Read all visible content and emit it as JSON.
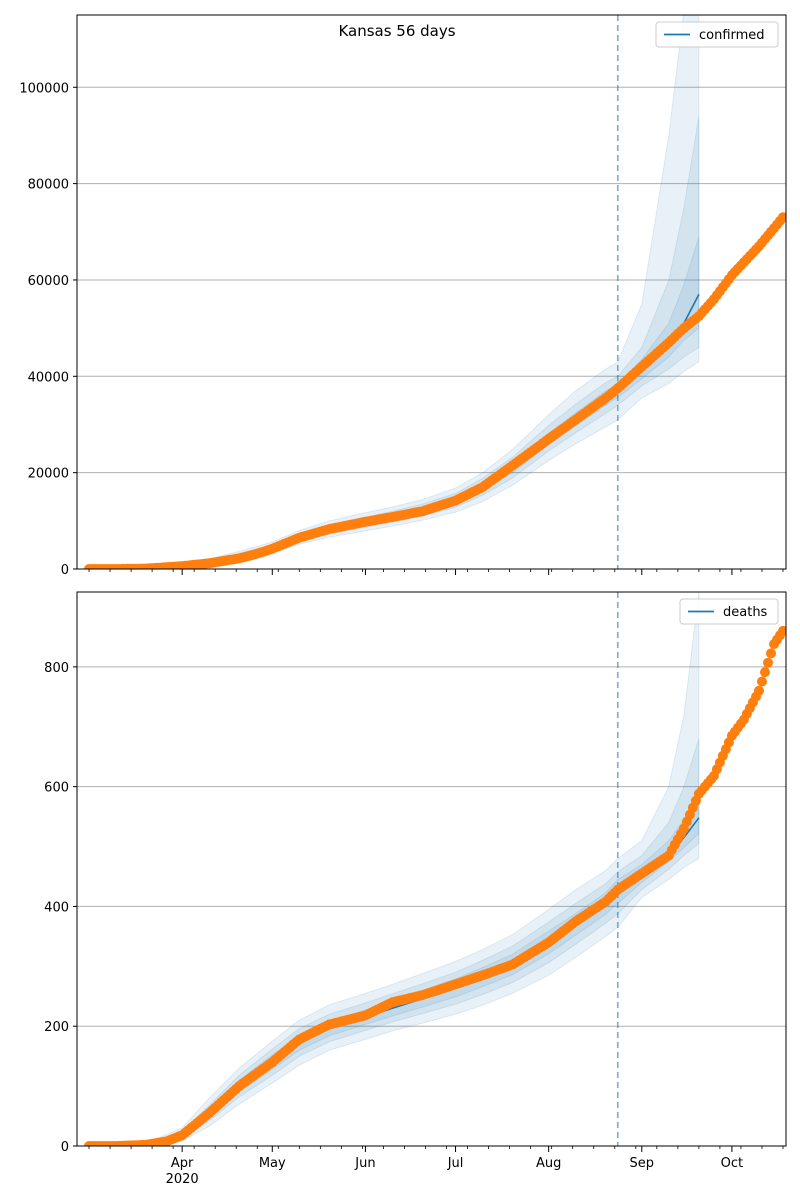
{
  "chart_data": [
    {
      "type": "line",
      "title": "Kansas 56 days",
      "xlabel": "",
      "ylabel": "",
      "ylim": [
        0,
        115000
      ],
      "grid": "horizontal",
      "legend_position": "top-right",
      "y_ticks": [
        0,
        20000,
        40000,
        60000,
        80000,
        100000
      ],
      "forecast_start": "2020-08-24",
      "series": [
        {
          "name": "confirmed",
          "kind": "model",
          "color": "#1f77b4",
          "x": [
            "2020-03-10",
            "2020-03-20",
            "2020-04-01",
            "2020-04-10",
            "2020-04-20",
            "2020-05-01",
            "2020-05-10",
            "2020-05-20",
            "2020-06-01",
            "2020-06-10",
            "2020-06-20",
            "2020-07-01",
            "2020-07-10",
            "2020-07-20",
            "2020-08-01",
            "2020-08-10",
            "2020-08-20",
            "2020-08-24",
            "2020-09-01",
            "2020-09-10",
            "2020-09-15",
            "2020-09-20"
          ],
          "values": [
            0,
            150,
            700,
            1500,
            2700,
            4300,
            6500,
            8200,
            9700,
            10800,
            12200,
            14200,
            17000,
            21000,
            27000,
            31000,
            35500,
            37000,
            41500,
            47000,
            51000,
            57000
          ],
          "bands": [
            {
              "lower": [
                0,
                100,
                450,
                1000,
                1900,
                3300,
                5100,
                6600,
                7900,
                8900,
                10100,
                11800,
                14000,
                17400,
                22500,
                26000,
                29500,
                31000,
                35500,
                38500,
                41000,
                43000
              ],
              "upper": [
                0,
                250,
                1000,
                2100,
                3700,
                5600,
                8000,
                10000,
                11700,
                12900,
                14400,
                16800,
                20000,
                24800,
                32000,
                37000,
                41500,
                43000,
                55000,
                90000,
                116000,
                116000
              ]
            },
            {
              "lower": [
                0,
                120,
                550,
                1200,
                2200,
                3700,
                5700,
                7300,
                8700,
                9700,
                11000,
                12800,
                15300,
                18900,
                24500,
                28300,
                32300,
                34000,
                38000,
                41500,
                44000,
                46000
              ],
              "upper": [
                0,
                200,
                880,
                1850,
                3250,
                5000,
                7300,
                9200,
                10800,
                12000,
                13500,
                15700,
                18800,
                23200,
                29800,
                34200,
                38700,
                40000,
                46000,
                60000,
                75000,
                94000
              ]
            },
            {
              "lower": [
                0,
                135,
                620,
                1350,
                2450,
                4000,
                6100,
                7800,
                9200,
                10300,
                11600,
                13500,
                16200,
                20000,
                25800,
                29700,
                34000,
                35600,
                39500,
                44000,
                47500,
                50000
              ],
              "upper": [
                0,
                170,
                790,
                1680,
                2980,
                4650,
                6900,
                8700,
                10200,
                11400,
                12850,
                14950,
                17900,
                22100,
                28200,
                32400,
                37000,
                38400,
                43500,
                51000,
                59000,
                69000
              ]
            }
          ]
        },
        {
          "name": "",
          "kind": "observed",
          "color": "#ff7f0e",
          "x": [
            "2020-03-01",
            "2020-03-10",
            "2020-03-20",
            "2020-03-25",
            "2020-04-01",
            "2020-04-10",
            "2020-04-20",
            "2020-04-25",
            "2020-05-01",
            "2020-05-10",
            "2020-05-20",
            "2020-06-01",
            "2020-06-10",
            "2020-06-20",
            "2020-07-01",
            "2020-07-10",
            "2020-07-20",
            "2020-08-01",
            "2020-08-10",
            "2020-08-20",
            "2020-08-24",
            "2020-09-01",
            "2020-09-10",
            "2020-09-15",
            "2020-09-20",
            "2020-09-25",
            "2020-10-01",
            "2020-10-10",
            "2020-10-18"
          ],
          "values": [
            0,
            0,
            100,
            300,
            600,
            1200,
            2200,
            3000,
            4200,
            6500,
            8300,
            9800,
            10800,
            12000,
            14200,
            17000,
            21500,
            27000,
            31000,
            35500,
            37500,
            42000,
            47000,
            50000,
            52500,
            56000,
            61000,
            67000,
            73000
          ]
        }
      ]
    },
    {
      "type": "line",
      "title": "",
      "xlabel": "",
      "ylabel": "",
      "ylim": [
        0,
        925
      ],
      "grid": "horizontal",
      "legend_position": "top-right",
      "y_ticks": [
        0,
        200,
        400,
        600,
        800
      ],
      "forecast_start": "2020-08-24",
      "x_ticks": [
        "Apr\n2020",
        "May",
        "Jun",
        "Jul",
        "Aug",
        "Sep",
        "Oct"
      ],
      "series": [
        {
          "name": "deaths",
          "kind": "model",
          "color": "#1f77b4",
          "x": [
            "2020-03-10",
            "2020-03-20",
            "2020-04-01",
            "2020-04-10",
            "2020-04-20",
            "2020-05-01",
            "2020-05-10",
            "2020-05-20",
            "2020-06-01",
            "2020-06-10",
            "2020-06-20",
            "2020-07-01",
            "2020-07-10",
            "2020-07-20",
            "2020-08-01",
            "2020-08-10",
            "2020-08-20",
            "2020-08-24",
            "2020-09-01",
            "2020-09-10",
            "2020-09-15",
            "2020-09-20"
          ],
          "values": [
            0,
            2,
            18,
            55,
            100,
            140,
            172,
            196,
            215,
            230,
            246,
            264,
            282,
            303,
            340,
            370,
            405,
            425,
            455,
            490,
            515,
            548
          ],
          "bands": [
            {
              "lower": [
                0,
                0,
                8,
                33,
                70,
                105,
                135,
                160,
                178,
                192,
                205,
                220,
                235,
                255,
                285,
                315,
                350,
                365,
                415,
                445,
                465,
                480
              ],
              "upper": [
                0,
                5,
                30,
                80,
                130,
                175,
                210,
                236,
                255,
                270,
                288,
                308,
                328,
                353,
                395,
                428,
                460,
                480,
                510,
                600,
                720,
                925
              ]
            },
            {
              "lower": [
                0,
                1,
                12,
                42,
                82,
                118,
                150,
                174,
                193,
                207,
                221,
                237,
                253,
                273,
                306,
                337,
                372,
                388,
                428,
                462,
                485,
                505
              ],
              "upper": [
                0,
                4,
                24,
                68,
                118,
                162,
                196,
                220,
                239,
                254,
                271,
                290,
                310,
                334,
                374,
                405,
                438,
                458,
                485,
                540,
                600,
                680
              ]
            },
            {
              "lower": [
                0,
                1,
                15,
                48,
                90,
                128,
                160,
                184,
                203,
                217,
                232,
                249,
                266,
                286,
                321,
                352,
                387,
                405,
                440,
                475,
                498,
                522
              ],
              "upper": [
                0,
                3,
                21,
                62,
                110,
                152,
                184,
                208,
                227,
                243,
                260,
                279,
                298,
                320,
                359,
                388,
                423,
                445,
                470,
                510,
                545,
                580
              ]
            }
          ]
        },
        {
          "name": "",
          "kind": "observed",
          "color": "#ff7f0e",
          "x": [
            "2020-03-01",
            "2020-03-10",
            "2020-03-20",
            "2020-03-27",
            "2020-04-01",
            "2020-04-10",
            "2020-04-20",
            "2020-05-01",
            "2020-05-10",
            "2020-05-20",
            "2020-06-01",
            "2020-06-10",
            "2020-06-20",
            "2020-07-01",
            "2020-07-10",
            "2020-07-20",
            "2020-08-01",
            "2020-08-10",
            "2020-08-20",
            "2020-08-24",
            "2020-09-01",
            "2020-09-10",
            "2020-09-15",
            "2020-09-20",
            "2020-09-25",
            "2020-10-01",
            "2020-10-05",
            "2020-10-10",
            "2020-10-15",
            "2020-10-18"
          ],
          "values": [
            0,
            0,
            2,
            8,
            18,
            55,
            100,
            140,
            178,
            203,
            218,
            240,
            252,
            270,
            285,
            303,
            340,
            375,
            408,
            428,
            455,
            485,
            530,
            588,
            618,
            685,
            712,
            760,
            838,
            860
          ]
        }
      ]
    }
  ]
}
